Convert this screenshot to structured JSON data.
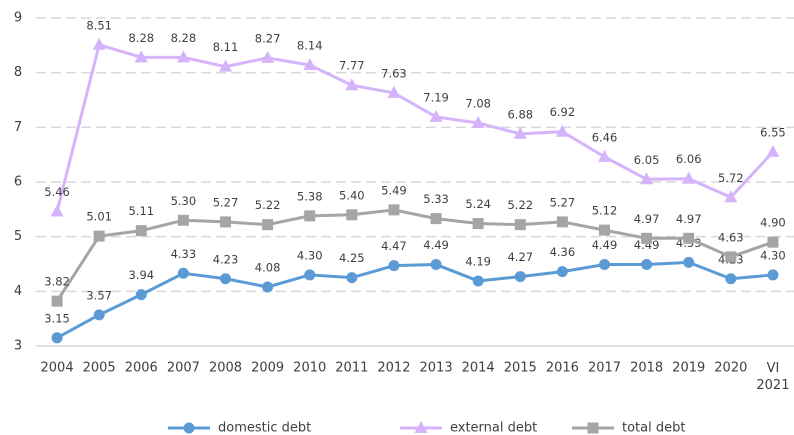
{
  "chart_data": {
    "type": "line",
    "categories": [
      "2004",
      "2005",
      "2006",
      "2007",
      "2008",
      "2009",
      "2010",
      "2011",
      "2012",
      "2013",
      "2014",
      "2015",
      "2016",
      "2017",
      "2018",
      "2019",
      "2020",
      "VI 2021"
    ],
    "ylim": [
      3,
      9
    ],
    "yticks": [
      3,
      4,
      5,
      6,
      7,
      8,
      9
    ],
    "grid": true,
    "legend": "bottom",
    "series": [
      {
        "name": "domestic debt",
        "color": "#5b9bd5",
        "marker": "circle",
        "values": [
          3.15,
          3.57,
          3.94,
          4.33,
          4.23,
          4.08,
          4.3,
          4.25,
          4.47,
          4.49,
          4.19,
          4.27,
          4.36,
          4.49,
          4.49,
          4.53,
          4.23,
          4.3
        ],
        "value_labels": [
          "3.15",
          "3.57",
          "3.94",
          "4.33",
          "4.23",
          "4.08",
          "4.30",
          "4.25",
          "4.47",
          "4.49",
          "4.19",
          "4.27",
          "4.36",
          "4.49",
          "4.49",
          "4.53",
          "4.23",
          "4.30"
        ]
      },
      {
        "name": "external debt",
        "color": "#d6b4fc",
        "marker": "triangle",
        "values": [
          5.46,
          8.51,
          8.28,
          8.28,
          8.11,
          8.27,
          8.14,
          7.77,
          7.63,
          7.19,
          7.08,
          6.88,
          6.92,
          6.46,
          6.05,
          6.06,
          5.72,
          6.55
        ],
        "value_labels": [
          "5.46",
          "8.51",
          "8.28",
          "8.28",
          "8.11",
          "8.27",
          "8.14",
          "7.77",
          "7.63",
          "7.19",
          "7.08",
          "6.88",
          "6.92",
          "6.46",
          "6.05",
          "6.06",
          "5.72",
          "6.55"
        ]
      },
      {
        "name": "total debt",
        "color": "#a5a5a5",
        "marker": "square",
        "values": [
          3.82,
          5.01,
          5.11,
          5.3,
          5.27,
          5.22,
          5.38,
          5.4,
          5.49,
          5.33,
          5.24,
          5.22,
          5.27,
          5.12,
          4.97,
          4.97,
          4.63,
          4.9
        ],
        "value_labels": [
          "3.82",
          "5.01",
          "5.11",
          "5.30",
          "5.27",
          "5.22",
          "5.38",
          "5.40",
          "5.49",
          "5.33",
          "5.24",
          "5.22",
          "5.27",
          "5.12",
          "4.97",
          "4.97",
          "4.63",
          "4.90"
        ]
      }
    ]
  }
}
